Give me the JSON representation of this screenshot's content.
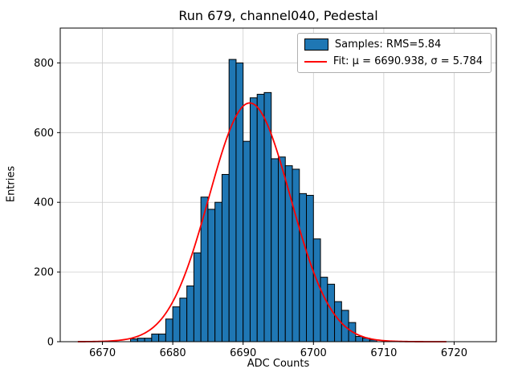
{
  "window": {
    "title": "Run 679, channel040, Pedestal"
  },
  "chart_data": {
    "type": "bar",
    "subtype": "histogram",
    "title": "Run 679, channel040, Pedestal",
    "xlabel": "ADC Counts",
    "ylabel": "Entries",
    "xlim": [
      6664,
      6726
    ],
    "ylim": [
      0,
      900
    ],
    "xticks": [
      6670,
      6680,
      6690,
      6700,
      6710,
      6720
    ],
    "yticks": [
      0,
      200,
      400,
      600,
      800
    ],
    "grid": true,
    "legend_position": "upper right",
    "bar_color": "#1f77b4",
    "bar_edge_color": "#000000",
    "fit_color": "#ff0000",
    "bins_start": 6674,
    "bin_width": 1,
    "counts": [
      8,
      10,
      10,
      22,
      22,
      65,
      100,
      125,
      160,
      255,
      415,
      380,
      400,
      480,
      810,
      800,
      575,
      700,
      710,
      715,
      525,
      530,
      505,
      495,
      425,
      420,
      295,
      185,
      165,
      115,
      90,
      55,
      15,
      10,
      5
    ],
    "fit": {
      "mu": 6690.938,
      "sigma": 5.784,
      "amplitude": 685,
      "x_start": 6666.5,
      "x_end": 6719
    },
    "legend": [
      {
        "label": "Samples: RMS=5.84",
        "marker": "patch"
      },
      {
        "label": "Fit: μ = 6690.938, σ = 5.784",
        "marker": "line"
      }
    ]
  }
}
